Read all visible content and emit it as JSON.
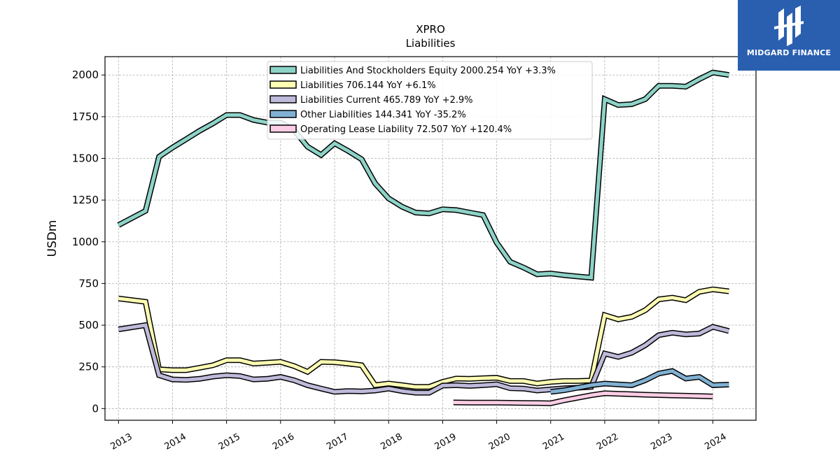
{
  "chart_data": {
    "type": "line",
    "title": "XPRO",
    "subtitle": "Liabilities",
    "ylabel": "USDm",
    "xlabel": "",
    "xlim": [
      2012.75,
      2024.8
    ],
    "ylim": [
      -70,
      2110
    ],
    "x_ticks": [
      "2013",
      "2014",
      "2015",
      "2016",
      "2017",
      "2018",
      "2019",
      "2020",
      "2021",
      "2022",
      "2023",
      "2024"
    ],
    "y_ticks": [
      0,
      250,
      500,
      750,
      1000,
      1250,
      1500,
      1750,
      2000
    ],
    "grid": true,
    "legend_position": "top-center",
    "series": [
      {
        "name": "Liabilities And Stockholders Equity  2000.254 YoY +3.3%",
        "color": "#8dd3c7",
        "x": [
          2013.0,
          2013.5,
          2013.75,
          2014.0,
          2014.25,
          2014.5,
          2014.75,
          2015.0,
          2015.25,
          2015.5,
          2015.75,
          2016.0,
          2016.25,
          2016.5,
          2016.75,
          2017.0,
          2017.25,
          2017.5,
          2017.75,
          2018.0,
          2018.25,
          2018.5,
          2018.75,
          2019.0,
          2019.25,
          2019.5,
          2019.75,
          2020.0,
          2020.25,
          2020.5,
          2020.75,
          2021.0,
          2021.25,
          2021.5,
          2021.75,
          2022.0,
          2022.25,
          2022.5,
          2022.75,
          2023.0,
          2023.25,
          2023.5,
          2023.75,
          2024.0,
          2024.3
        ],
        "y": [
          1100,
          1185,
          1510,
          1565,
          1615,
          1665,
          1710,
          1760,
          1760,
          1730,
          1715,
          1715,
          1670,
          1570,
          1520,
          1590,
          1545,
          1495,
          1350,
          1260,
          1210,
          1175,
          1170,
          1195,
          1190,
          1175,
          1160,
          995,
          880,
          845,
          805,
          810,
          800,
          792,
          785,
          1855,
          1820,
          1825,
          1855,
          1935,
          1935,
          1930,
          1975,
          2015,
          2000
        ]
      },
      {
        "name": "Liabilities  706.144 YoY +6.1%",
        "color": "#ffffb3",
        "x": [
          2013.0,
          2013.5,
          2013.75,
          2014.0,
          2014.25,
          2014.5,
          2014.75,
          2015.0,
          2015.25,
          2015.5,
          2015.75,
          2016.0,
          2016.25,
          2016.5,
          2016.75,
          2017.0,
          2017.25,
          2017.5,
          2017.75,
          2018.0,
          2018.25,
          2018.5,
          2018.75,
          2019.0,
          2019.25,
          2019.5,
          2019.75,
          2020.0,
          2020.25,
          2020.5,
          2020.75,
          2021.0,
          2021.25,
          2021.5,
          2021.75,
          2022.0,
          2022.25,
          2022.5,
          2022.75,
          2023.0,
          2023.25,
          2023.5,
          2023.75,
          2024.0,
          2024.3
        ],
        "y": [
          660,
          640,
          235,
          230,
          230,
          245,
          260,
          290,
          290,
          270,
          275,
          280,
          255,
          220,
          280,
          278,
          270,
          260,
          140,
          150,
          140,
          130,
          130,
          160,
          180,
          178,
          182,
          185,
          165,
          165,
          150,
          160,
          165,
          165,
          168,
          560,
          535,
          550,
          590,
          655,
          665,
          650,
          700,
          715,
          703
        ]
      },
      {
        "name": "Liabilities Current  465.789 YoY +2.9%",
        "color": "#bebada",
        "x": [
          2013.0,
          2013.5,
          2013.75,
          2014.0,
          2014.25,
          2014.5,
          2014.75,
          2015.0,
          2015.25,
          2015.5,
          2015.75,
          2016.0,
          2016.25,
          2016.5,
          2016.75,
          2017.0,
          2017.25,
          2017.5,
          2017.75,
          2018.0,
          2018.25,
          2018.5,
          2018.75,
          2019.0,
          2019.25,
          2019.5,
          2019.75,
          2020.0,
          2020.25,
          2020.5,
          2020.75,
          2021.0,
          2021.25,
          2021.5,
          2021.75,
          2022.0,
          2022.25,
          2022.5,
          2022.75,
          2023.0,
          2023.25,
          2023.5,
          2023.75,
          2024.0,
          2024.3
        ],
        "y": [
          475,
          500,
          200,
          175,
          172,
          178,
          192,
          200,
          195,
          175,
          178,
          190,
          170,
          140,
          120,
          100,
          105,
          103,
          108,
          120,
          105,
          95,
          95,
          138,
          140,
          136,
          140,
          146,
          122,
          120,
          108,
          115,
          122,
          125,
          130,
          330,
          310,
          335,
          380,
          440,
          455,
          445,
          450,
          490,
          465
        ]
      },
      {
        "name": "Other Liabilities  144.341 YoY -35.2%",
        "color": "#80b1d3",
        "x": [
          2021.0,
          2021.25,
          2021.5,
          2021.75,
          2022.0,
          2022.25,
          2022.5,
          2022.75,
          2023.0,
          2023.25,
          2023.5,
          2023.75,
          2024.0,
          2024.3
        ],
        "y": [
          100,
          110,
          125,
          140,
          150,
          145,
          140,
          170,
          210,
          225,
          180,
          190,
          140,
          144
        ]
      },
      {
        "name": "Operating Lease Liability  72.507 YoY +120.4%",
        "color": "#fccde5",
        "x": [
          2019.2,
          2019.5,
          2019.75,
          2020.0,
          2020.25,
          2020.5,
          2020.75,
          2021.0,
          2021.25,
          2021.5,
          2021.75,
          2022.0,
          2022.25,
          2022.5,
          2022.75,
          2023.0,
          2023.25,
          2023.5,
          2023.75,
          2024.0
        ],
        "y": [
          37,
          36,
          36,
          36,
          35,
          34,
          33,
          32,
          50,
          65,
          80,
          92,
          89,
          86,
          83,
          81,
          79,
          77,
          75,
          73
        ]
      }
    ]
  },
  "logo": {
    "text": "MIDGARD FINANCE",
    "color": "#2a5fb0"
  }
}
